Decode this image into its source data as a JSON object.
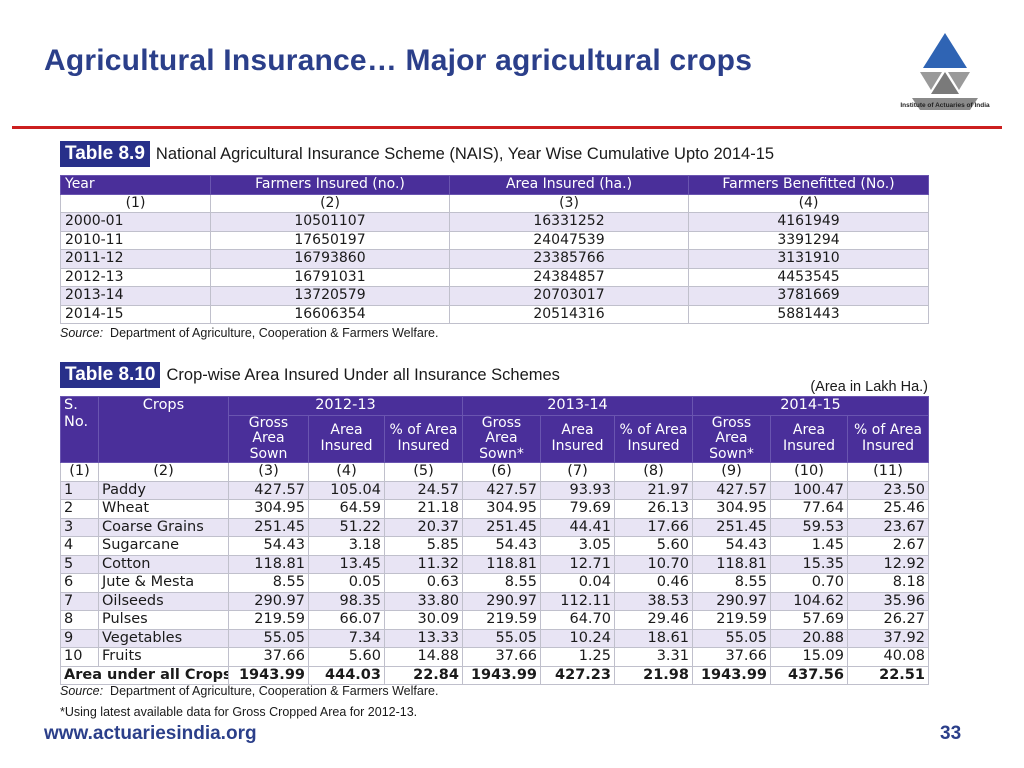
{
  "title": "Agricultural  Insurance… Major agricultural crops",
  "logo_text": "Institute of Actuaries of India",
  "table89": {
    "tag": "Table 8.9",
    "caption": "National Agricultural Insurance Scheme (NAIS), Year Wise Cumulative Upto 2014-15",
    "headers": [
      "Year",
      "Farmers Insured (no.)",
      "Area Insured (ha.)",
      "Farmers Benefitted (No.)"
    ],
    "numbers": [
      "(1)",
      "(2)",
      "(3)",
      "(4)"
    ],
    "rows": [
      [
        "2000-01",
        "10501107",
        "16331252",
        "4161949"
      ],
      [
        "2010-11",
        "17650197",
        "24047539",
        "3391294"
      ],
      [
        "2011-12",
        "16793860",
        "23385766",
        "3131910"
      ],
      [
        "2012-13",
        "16791031",
        "24384857",
        "4453545"
      ],
      [
        "2013-14",
        "13720579",
        "20703017",
        "3781669"
      ],
      [
        "2014-15",
        "16606354",
        "20514316",
        "5881443"
      ]
    ],
    "source_label": "Source:",
    "source_text": "Department of Agriculture, Cooperation & Farmers Welfare."
  },
  "table810": {
    "tag": "Table 8.10",
    "caption": "Crop-wise Area Insured Under all Insurance Schemes",
    "unit_note": "(Area in Lakh Ha.)",
    "sno_header": "S. No.",
    "crops_header": "Crops",
    "years": [
      "2012-13",
      "2013-14",
      "2014-15"
    ],
    "subheaders": [
      "Gross Area Sown",
      "Area Insured",
      "% of Area Insured",
      "Gross Area Sown*",
      "Area Insured",
      "% of Area Insured",
      "Gross Area Sown*",
      "Area Insured",
      "% of Area Insured"
    ],
    "numbers": [
      "(1)",
      "(2)",
      "(3)",
      "(4)",
      "(5)",
      "(6)",
      "(7)",
      "(8)",
      "(9)",
      "(10)",
      "(11)"
    ],
    "rows": [
      [
        "1",
        "Paddy",
        "427.57",
        "105.04",
        "24.57",
        "427.57",
        "93.93",
        "21.97",
        "427.57",
        "100.47",
        "23.50"
      ],
      [
        "2",
        "Wheat",
        "304.95",
        "64.59",
        "21.18",
        "304.95",
        "79.69",
        "26.13",
        "304.95",
        "77.64",
        "25.46"
      ],
      [
        "3",
        "Coarse Grains",
        "251.45",
        "51.22",
        "20.37",
        "251.45",
        "44.41",
        "17.66",
        "251.45",
        "59.53",
        "23.67"
      ],
      [
        "4",
        "Sugarcane",
        "54.43",
        "3.18",
        "5.85",
        "54.43",
        "3.05",
        "5.60",
        "54.43",
        "1.45",
        "2.67"
      ],
      [
        "5",
        "Cotton",
        "118.81",
        "13.45",
        "11.32",
        "118.81",
        "12.71",
        "10.70",
        "118.81",
        "15.35",
        "12.92"
      ],
      [
        "6",
        "Jute & Mesta",
        "8.55",
        "0.05",
        "0.63",
        "8.55",
        "0.04",
        "0.46",
        "8.55",
        "0.70",
        "8.18"
      ],
      [
        "7",
        "Oilseeds",
        "290.97",
        "98.35",
        "33.80",
        "290.97",
        "112.11",
        "38.53",
        "290.97",
        "104.62",
        "35.96"
      ],
      [
        "8",
        "Pulses",
        "219.59",
        "66.07",
        "30.09",
        "219.59",
        "64.70",
        "29.46",
        "219.59",
        "57.69",
        "26.27"
      ],
      [
        "9",
        "Vegetables",
        "55.05",
        "7.34",
        "13.33",
        "55.05",
        "10.24",
        "18.61",
        "55.05",
        "20.88",
        "37.92"
      ],
      [
        "10",
        "Fruits",
        "37.66",
        "5.60",
        "14.88",
        "37.66",
        "1.25",
        "3.31",
        "37.66",
        "15.09",
        "40.08"
      ]
    ],
    "total": [
      "Area under all Crops",
      "1943.99",
      "444.03",
      "22.84",
      "1943.99",
      "427.23",
      "21.98",
      "1943.99",
      "437.56",
      "22.51"
    ],
    "source_label": "Source:",
    "source_text": "Department of Agriculture, Cooperation & Farmers Welfare.",
    "footnote": "*Using latest available data for Gross Cropped Area for 2012-13."
  },
  "footer": {
    "url": "www.actuariesindia.org",
    "page": "33"
  },
  "colors": {
    "title": "#2b3f8a",
    "rule": "#cc1f1f",
    "table_header": "#4a2f9a",
    "row_alt": "#e8e4f4"
  }
}
